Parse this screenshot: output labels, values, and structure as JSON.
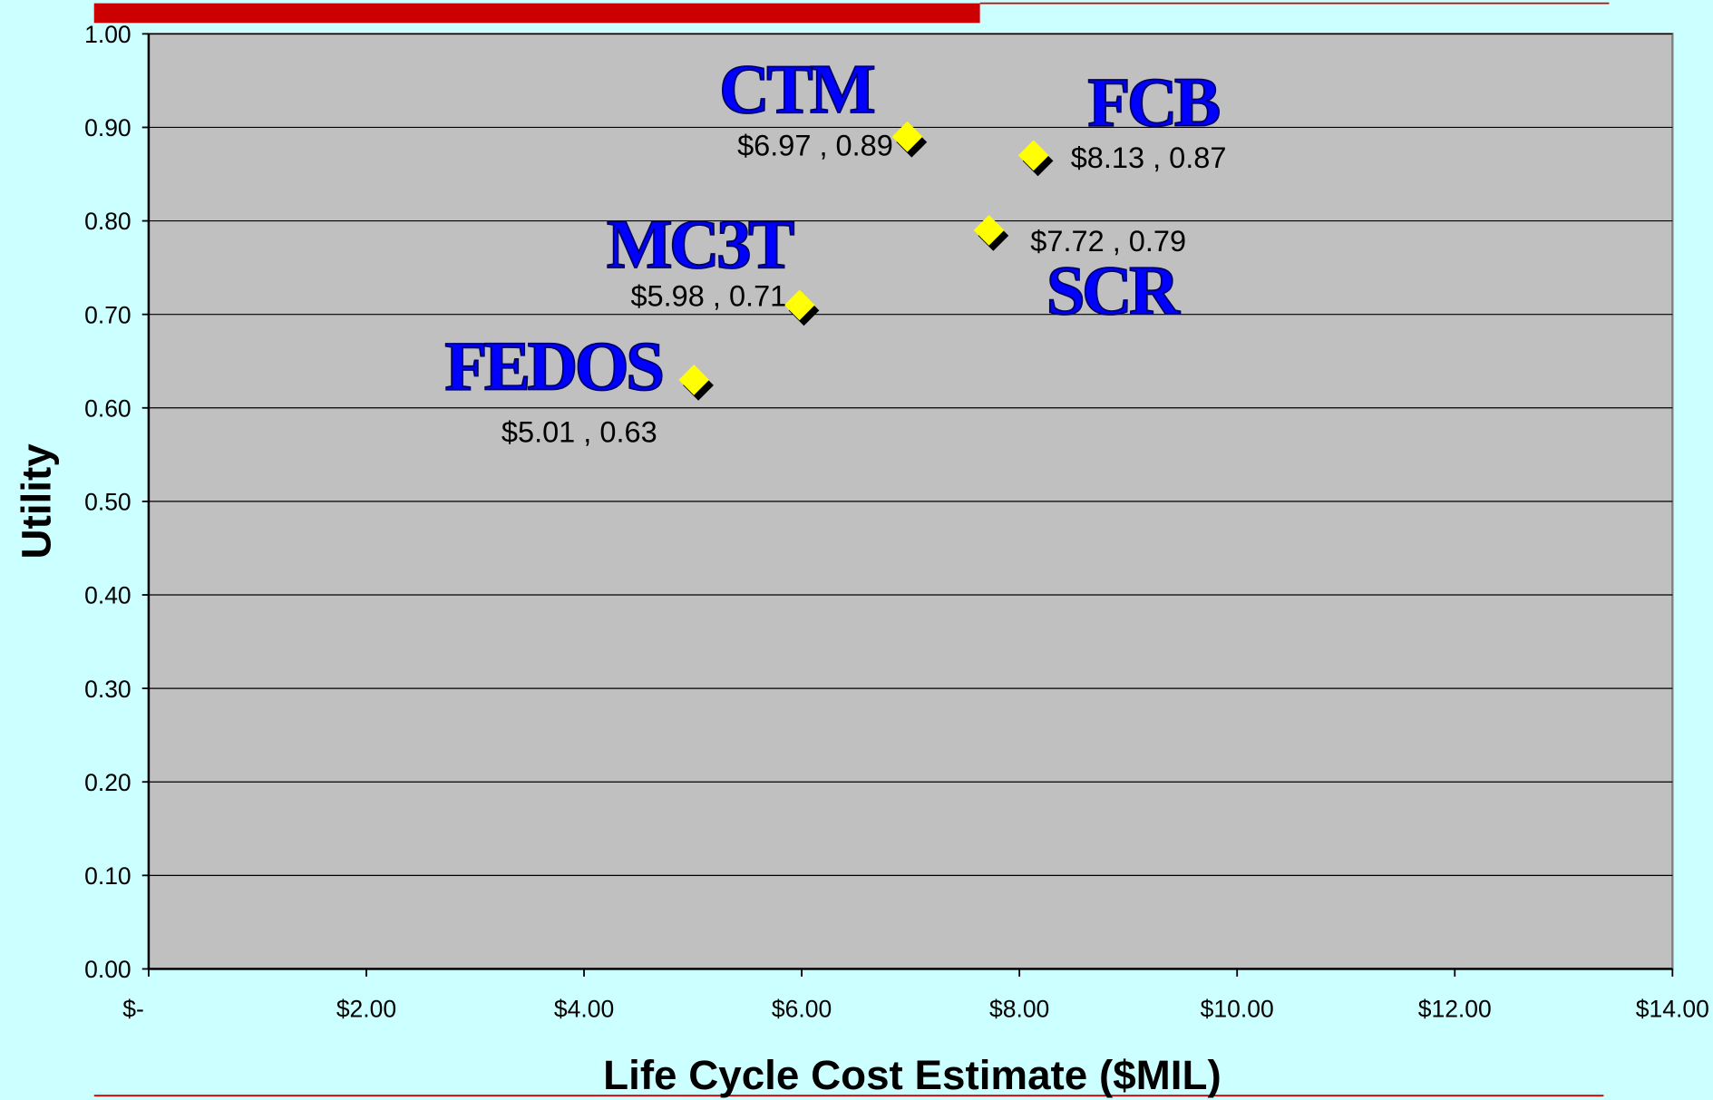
{
  "chart_data": {
    "type": "scatter",
    "x_label": "Life Cycle Cost Estimate ($MIL)",
    "y_label": "Utility",
    "point_names": [
      "CTM",
      "FCB",
      "SCR",
      "MC3T",
      "FEDOS"
    ],
    "x": [
      6.97,
      8.13,
      7.72,
      5.98,
      5.01
    ],
    "values": [
      0.89,
      0.87,
      0.79,
      0.71,
      0.63
    ],
    "value_labels": [
      "$6.97 , 0.89",
      "$8.13 , 0.87",
      "$7.72 , 0.79",
      "$5.98 , 0.71",
      "$5.01 , 0.63"
    ],
    "color": "#ffff00",
    "xlim": [
      0,
      14
    ],
    "xticks": [
      {
        "value": 0,
        "label": "$-"
      },
      {
        "value": 2,
        "label": "$2.00"
      },
      {
        "value": 4,
        "label": "$4.00"
      },
      {
        "value": 6,
        "label": "$6.00"
      },
      {
        "value": 8,
        "label": "$8.00"
      },
      {
        "value": 10,
        "label": "$10.00"
      },
      {
        "value": 12,
        "label": "$12.00"
      },
      {
        "value": 14,
        "label": "$14.00"
      }
    ],
    "ylim": [
      0,
      1
    ],
    "yticks": [
      {
        "value": 0,
        "label": "0.00"
      },
      {
        "value": 0.1,
        "label": "0.10"
      },
      {
        "value": 0.2,
        "label": "0.20"
      },
      {
        "value": 0.3,
        "label": "0.30"
      },
      {
        "value": 0.4,
        "label": "0.40"
      },
      {
        "value": 0.5,
        "label": "0.50"
      },
      {
        "value": 0.6,
        "label": "0.60"
      },
      {
        "value": 0.7,
        "label": "0.70"
      },
      {
        "value": 0.8,
        "label": "0.80"
      },
      {
        "value": 0.9,
        "label": "0.90"
      },
      {
        "value": 1,
        "label": "1.00"
      }
    ],
    "grid": true
  }
}
